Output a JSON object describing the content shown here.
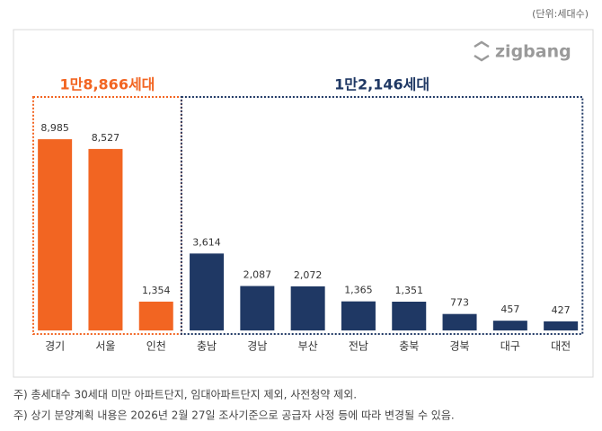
{
  "chart_data": {
    "type": "bar",
    "unit": "(단위:세대수)",
    "logo": "zigbang",
    "categories": [
      "경기",
      "서울",
      "인천",
      "충남",
      "경남",
      "부산",
      "전남",
      "충북",
      "경북",
      "대구",
      "대전"
    ],
    "values": [
      8985,
      8527,
      1354,
      3614,
      2087,
      2072,
      1365,
      1351,
      773,
      457,
      427
    ],
    "value_labels": [
      "8,985",
      "8,527",
      "1,354",
      "3,614",
      "2,087",
      "2,072",
      "1,365",
      "1,351",
      "773",
      "457",
      "427"
    ],
    "colors": [
      "#f26522",
      "#f26522",
      "#f26522",
      "#1f3864",
      "#1f3864",
      "#1f3864",
      "#1f3864",
      "#1f3864",
      "#1f3864",
      "#1f3864",
      "#1f3864"
    ],
    "annotations": [
      "1만8,866세대",
      "1만2,146세대"
    ],
    "ylim": [
      0,
      10000
    ],
    "notes": [
      "주) 총세대수 30세대 미만 아파트단지, 임대아파트단지 제외, 사전청약 제외.",
      "주) 상기 분양계획 내용은 2026년 2월 27일 조사기준으로 공급자 사정 등에 따라 변경될 수 있음."
    ]
  }
}
